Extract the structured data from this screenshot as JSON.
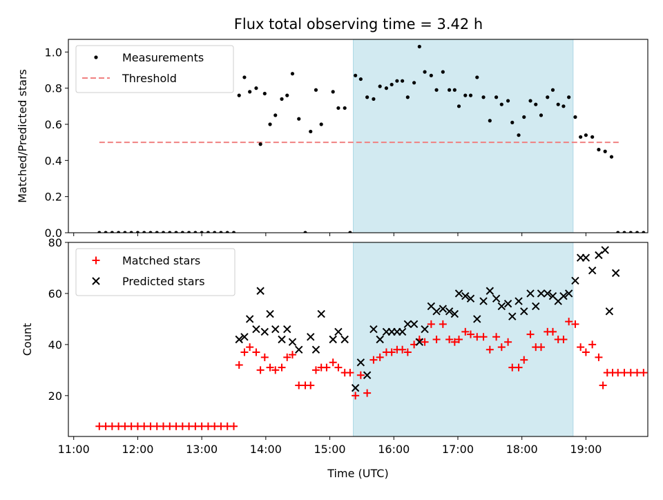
{
  "title": "Flux total observing time = 3.42 h",
  "colors": {
    "measurement": "#000000",
    "threshold": "#f08080",
    "matched": "#ff0000",
    "predicted": "#000000",
    "highlight": "#add8e6"
  },
  "chart_data": [
    {
      "type": "scatter",
      "ylabel": "Matched/Predicted stars",
      "ylim": [
        0,
        1.07
      ],
      "yticks": [
        0.0,
        0.2,
        0.4,
        0.6,
        0.8,
        1.0
      ],
      "ytick_labels": [
        "0.0",
        "0.2",
        "0.4",
        "0.6",
        "0.8",
        "1.0"
      ],
      "highlight_span": [
        "15:22",
        "18:48"
      ],
      "legend": {
        "placement": "upper-left",
        "entries": [
          "Measurements",
          "Threshold"
        ]
      },
      "threshold": {
        "name": "Threshold",
        "y": 0.5,
        "x_start": "11:24",
        "x_end": "19:31"
      },
      "series": [
        {
          "name": "Measurements",
          "marker": "dot",
          "points": [
            [
              "11:24",
              0
            ],
            [
              "11:30",
              0
            ],
            [
              "11:36",
              0
            ],
            [
              "11:42",
              0
            ],
            [
              "11:48",
              0
            ],
            [
              "11:54",
              0
            ],
            [
              "12:00",
              0
            ],
            [
              "12:06",
              0
            ],
            [
              "12:12",
              0
            ],
            [
              "12:18",
              0
            ],
            [
              "12:24",
              0
            ],
            [
              "12:30",
              0
            ],
            [
              "12:36",
              0
            ],
            [
              "12:42",
              0
            ],
            [
              "12:48",
              0
            ],
            [
              "12:54",
              0
            ],
            [
              "13:00",
              0
            ],
            [
              "13:06",
              0
            ],
            [
              "13:12",
              0
            ],
            [
              "13:18",
              0
            ],
            [
              "13:24",
              0
            ],
            [
              "13:30",
              0
            ],
            [
              "13:35",
              0.76
            ],
            [
              "13:40",
              0.86
            ],
            [
              "13:45",
              0.78
            ],
            [
              "13:51",
              0.8
            ],
            [
              "13:55",
              0.49
            ],
            [
              "13:59",
              0.77
            ],
            [
              "14:04",
              0.6
            ],
            [
              "14:09",
              0.65
            ],
            [
              "14:15",
              0.74
            ],
            [
              "14:20",
              0.76
            ],
            [
              "14:25",
              0.88
            ],
            [
              "14:31",
              0.63
            ],
            [
              "14:37",
              0
            ],
            [
              "14:42",
              0.56
            ],
            [
              "14:47",
              0.79
            ],
            [
              "14:52",
              0.6
            ],
            [
              "15:03",
              0.78
            ],
            [
              "15:08",
              0.69
            ],
            [
              "15:14",
              0.69
            ],
            [
              "15:19",
              0
            ],
            [
              "15:24",
              0.87
            ],
            [
              "15:29",
              0.85
            ],
            [
              "15:35",
              0.75
            ],
            [
              "15:41",
              0.74
            ],
            [
              "15:47",
              0.81
            ],
            [
              "15:53",
              0.8
            ],
            [
              "15:58",
              0.82
            ],
            [
              "16:03",
              0.84
            ],
            [
              "16:08",
              0.84
            ],
            [
              "16:13",
              0.75
            ],
            [
              "16:19",
              0.83
            ],
            [
              "16:24",
              1.03
            ],
            [
              "16:29",
              0.89
            ],
            [
              "16:35",
              0.87
            ],
            [
              "16:40",
              0.79
            ],
            [
              "16:46",
              0.89
            ],
            [
              "16:52",
              0.79
            ],
            [
              "16:57",
              0.79
            ],
            [
              "17:01",
              0.7
            ],
            [
              "17:07",
              0.76
            ],
            [
              "17:12",
              0.76
            ],
            [
              "17:18",
              0.86
            ],
            [
              "17:24",
              0.75
            ],
            [
              "17:30",
              0.62
            ],
            [
              "17:36",
              0.75
            ],
            [
              "17:41",
              0.71
            ],
            [
              "17:47",
              0.73
            ],
            [
              "17:51",
              0.61
            ],
            [
              "17:57",
              0.54
            ],
            [
              "18:02",
              0.64
            ],
            [
              "18:08",
              0.73
            ],
            [
              "18:13",
              0.71
            ],
            [
              "18:18",
              0.65
            ],
            [
              "18:24",
              0.75
            ],
            [
              "18:29",
              0.79
            ],
            [
              "18:34",
              0.71
            ],
            [
              "18:39",
              0.7
            ],
            [
              "18:44",
              0.75
            ],
            [
              "18:50",
              0.64
            ],
            [
              "18:55",
              0.53
            ],
            [
              "19:00",
              0.54
            ],
            [
              "19:06",
              0.53
            ],
            [
              "19:12",
              0.46
            ],
            [
              "19:18",
              0.45
            ],
            [
              "19:24",
              0.42
            ],
            [
              "19:30",
              0
            ],
            [
              "19:36",
              0
            ],
            [
              "19:42",
              0
            ],
            [
              "19:48",
              0
            ],
            [
              "19:54",
              0
            ]
          ]
        }
      ]
    },
    {
      "type": "scatter",
      "xlabel": "Time (UTC)",
      "ylabel": "Count",
      "xlim": [
        "10:55",
        "19:58"
      ],
      "ylim": [
        4,
        80
      ],
      "xticks": [
        "11:00",
        "12:00",
        "13:00",
        "14:00",
        "15:00",
        "16:00",
        "17:00",
        "18:00",
        "19:00"
      ],
      "xtick_labels": [
        "11:00",
        "12:00",
        "13:00",
        "14:00",
        "15:00",
        "16:00",
        "17:00",
        "18:00",
        "19:00"
      ],
      "yticks": [
        20,
        40,
        60,
        80
      ],
      "ytick_labels": [
        "20",
        "40",
        "60",
        "80"
      ],
      "highlight_span": [
        "15:22",
        "18:48"
      ],
      "legend": {
        "placement": "upper-left",
        "entries": [
          "Matched stars",
          "Predicted stars"
        ]
      },
      "series": [
        {
          "name": "Matched stars",
          "marker": "plus",
          "points": [
            [
              "11:24",
              8
            ],
            [
              "11:30",
              8
            ],
            [
              "11:36",
              8
            ],
            [
              "11:42",
              8
            ],
            [
              "11:48",
              8
            ],
            [
              "11:54",
              8
            ],
            [
              "12:00",
              8
            ],
            [
              "12:06",
              8
            ],
            [
              "12:12",
              8
            ],
            [
              "12:18",
              8
            ],
            [
              "12:24",
              8
            ],
            [
              "12:30",
              8
            ],
            [
              "12:36",
              8
            ],
            [
              "12:42",
              8
            ],
            [
              "12:48",
              8
            ],
            [
              "12:54",
              8
            ],
            [
              "13:00",
              8
            ],
            [
              "13:06",
              8
            ],
            [
              "13:12",
              8
            ],
            [
              "13:18",
              8
            ],
            [
              "13:24",
              8
            ],
            [
              "13:30",
              8
            ],
            [
              "13:35",
              32
            ],
            [
              "13:40",
              37
            ],
            [
              "13:45",
              39
            ],
            [
              "13:51",
              37
            ],
            [
              "13:55",
              30
            ],
            [
              "13:59",
              35
            ],
            [
              "14:04",
              31
            ],
            [
              "14:09",
              30
            ],
            [
              "14:15",
              31
            ],
            [
              "14:20",
              35
            ],
            [
              "14:25",
              36
            ],
            [
              "14:31",
              24
            ],
            [
              "14:37",
              24
            ],
            [
              "14:42",
              24
            ],
            [
              "14:47",
              30
            ],
            [
              "14:52",
              31
            ],
            [
              "14:57",
              31
            ],
            [
              "15:03",
              33
            ],
            [
              "15:08",
              31
            ],
            [
              "15:14",
              29
            ],
            [
              "15:19",
              29
            ],
            [
              "15:24",
              20
            ],
            [
              "15:29",
              28
            ],
            [
              "15:35",
              21
            ],
            [
              "15:41",
              34
            ],
            [
              "15:47",
              35
            ],
            [
              "15:53",
              37
            ],
            [
              "15:58",
              37
            ],
            [
              "16:03",
              38
            ],
            [
              "16:08",
              38
            ],
            [
              "16:13",
              37
            ],
            [
              "16:19",
              40
            ],
            [
              "16:24",
              42
            ],
            [
              "16:29",
              41
            ],
            [
              "16:35",
              48
            ],
            [
              "16:40",
              42
            ],
            [
              "16:46",
              48
            ],
            [
              "16:52",
              42
            ],
            [
              "16:57",
              41
            ],
            [
              "17:01",
              42
            ],
            [
              "17:07",
              45
            ],
            [
              "17:12",
              44
            ],
            [
              "17:18",
              43
            ],
            [
              "17:24",
              43
            ],
            [
              "17:30",
              38
            ],
            [
              "17:36",
              43
            ],
            [
              "17:41",
              39
            ],
            [
              "17:47",
              41
            ],
            [
              "17:51",
              31
            ],
            [
              "17:57",
              31
            ],
            [
              "18:02",
              34
            ],
            [
              "18:08",
              44
            ],
            [
              "18:13",
              39
            ],
            [
              "18:18",
              39
            ],
            [
              "18:24",
              45
            ],
            [
              "18:29",
              45
            ],
            [
              "18:34",
              42
            ],
            [
              "18:39",
              42
            ],
            [
              "18:44",
              49
            ],
            [
              "18:50",
              48
            ],
            [
              "18:55",
              39
            ],
            [
              "19:00",
              37
            ],
            [
              "19:06",
              40
            ],
            [
              "19:12",
              35
            ],
            [
              "19:16",
              24
            ],
            [
              "19:20",
              29
            ],
            [
              "19:25",
              29
            ],
            [
              "19:30",
              29
            ],
            [
              "19:36",
              29
            ],
            [
              "19:42",
              29
            ],
            [
              "19:48",
              29
            ],
            [
              "19:54",
              29
            ]
          ]
        },
        {
          "name": "Predicted stars",
          "marker": "x",
          "points": [
            [
              "13:35",
              42
            ],
            [
              "13:40",
              43
            ],
            [
              "13:45",
              50
            ],
            [
              "13:51",
              46
            ],
            [
              "13:55",
              61
            ],
            [
              "13:59",
              45
            ],
            [
              "14:04",
              52
            ],
            [
              "14:09",
              46
            ],
            [
              "14:15",
              42
            ],
            [
              "14:20",
              46
            ],
            [
              "14:25",
              41
            ],
            [
              "14:31",
              38
            ],
            [
              "14:42",
              43
            ],
            [
              "14:47",
              38
            ],
            [
              "14:52",
              52
            ],
            [
              "15:03",
              42
            ],
            [
              "15:08",
              45
            ],
            [
              "15:14",
              42
            ],
            [
              "15:24",
              23
            ],
            [
              "15:29",
              33
            ],
            [
              "15:35",
              28
            ],
            [
              "15:41",
              46
            ],
            [
              "15:47",
              42
            ],
            [
              "15:53",
              45
            ],
            [
              "15:58",
              45
            ],
            [
              "16:03",
              45
            ],
            [
              "16:08",
              45
            ],
            [
              "16:13",
              48
            ],
            [
              "16:19",
              48
            ],
            [
              "16:24",
              41
            ],
            [
              "16:29",
              46
            ],
            [
              "16:35",
              55
            ],
            [
              "16:40",
              53
            ],
            [
              "16:46",
              54
            ],
            [
              "16:52",
              53
            ],
            [
              "16:57",
              52
            ],
            [
              "17:01",
              60
            ],
            [
              "17:07",
              59
            ],
            [
              "17:12",
              58
            ],
            [
              "17:18",
              50
            ],
            [
              "17:24",
              57
            ],
            [
              "17:30",
              61
            ],
            [
              "17:36",
              58
            ],
            [
              "17:41",
              55
            ],
            [
              "17:47",
              56
            ],
            [
              "17:51",
              51
            ],
            [
              "17:57",
              57
            ],
            [
              "18:02",
              53
            ],
            [
              "18:08",
              60
            ],
            [
              "18:13",
              55
            ],
            [
              "18:18",
              60
            ],
            [
              "18:24",
              60
            ],
            [
              "18:29",
              59
            ],
            [
              "18:34",
              57
            ],
            [
              "18:39",
              59
            ],
            [
              "18:44",
              60
            ],
            [
              "18:50",
              65
            ],
            [
              "18:55",
              74
            ],
            [
              "19:00",
              74
            ],
            [
              "19:06",
              69
            ],
            [
              "19:12",
              75
            ],
            [
              "19:18",
              77
            ],
            [
              "19:22",
              53
            ],
            [
              "19:28",
              68
            ]
          ]
        }
      ]
    }
  ]
}
